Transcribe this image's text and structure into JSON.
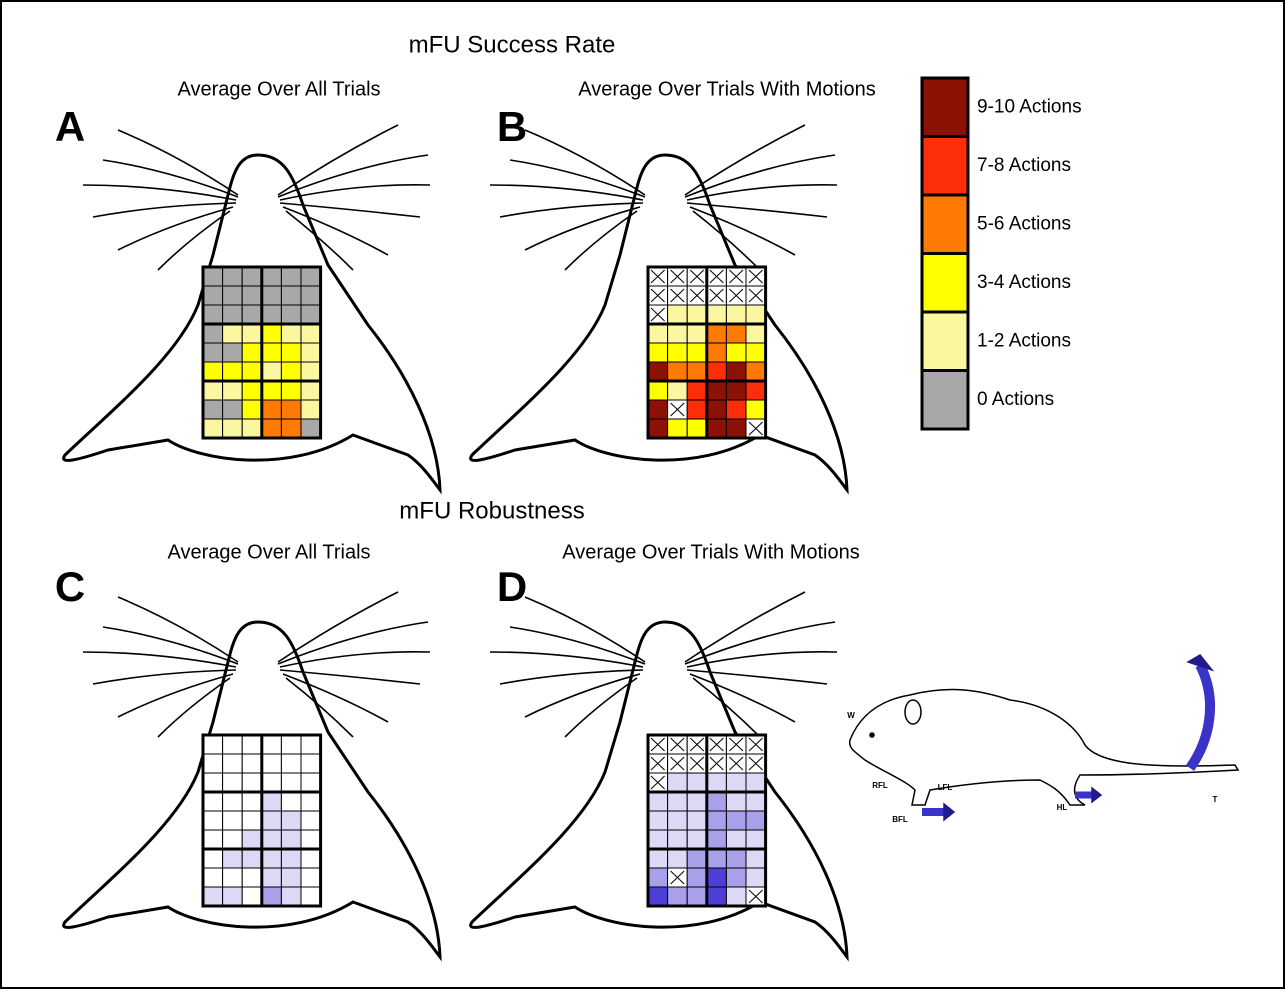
{
  "title_top": "mFU Success Rate",
  "title_bottom": "mFU Robustness",
  "panels": [
    {
      "letter": "A",
      "subtitle": "Average Over All Trials",
      "scale": "success",
      "cells": [
        [
          0,
          0,
          0,
          0,
          0,
          0
        ],
        [
          0,
          0,
          0,
          0,
          0,
          0
        ],
        [
          0,
          0,
          0,
          0,
          0,
          0
        ],
        [
          0,
          1,
          1,
          2,
          1,
          1
        ],
        [
          0,
          0,
          2,
          2,
          2,
          1
        ],
        [
          2,
          2,
          2,
          1,
          2,
          1
        ],
        [
          1,
          1,
          2,
          2,
          2,
          1
        ],
        [
          0,
          0,
          2,
          3,
          3,
          1
        ],
        [
          1,
          1,
          1,
          3,
          3,
          0
        ]
      ]
    },
    {
      "letter": "B",
      "subtitle": "Average Over Trials With Motions",
      "scale": "success",
      "cells": [
        [
          null,
          null,
          null,
          null,
          null,
          null
        ],
        [
          null,
          null,
          null,
          null,
          null,
          null
        ],
        [
          null,
          1,
          1,
          1,
          1,
          1
        ],
        [
          1,
          1,
          1,
          3,
          3,
          1
        ],
        [
          2,
          2,
          2,
          3,
          2,
          2
        ],
        [
          5,
          3,
          3,
          4,
          5,
          3
        ],
        [
          2,
          1,
          4,
          5,
          5,
          4
        ],
        [
          5,
          null,
          4,
          5,
          4,
          2
        ],
        [
          5,
          2,
          2,
          5,
          5,
          null
        ]
      ]
    },
    {
      "letter": "C",
      "subtitle": "Average Over All Trials",
      "scale": "robustness",
      "cells": [
        [
          0,
          0,
          0,
          0,
          0,
          0
        ],
        [
          0,
          0,
          0,
          0,
          0,
          0
        ],
        [
          0,
          0,
          0,
          0,
          0,
          0
        ],
        [
          0,
          0,
          0,
          1,
          0,
          0
        ],
        [
          0,
          0,
          0,
          1,
          1,
          0
        ],
        [
          0,
          0,
          1,
          1,
          1,
          0
        ],
        [
          0,
          1,
          1,
          1,
          1,
          0
        ],
        [
          0,
          0,
          0,
          1,
          1,
          0
        ],
        [
          1,
          1,
          0,
          2,
          1,
          0
        ]
      ]
    },
    {
      "letter": "D",
      "subtitle": "Average Over Trials With Motions",
      "scale": "robustness",
      "cells": [
        [
          null,
          null,
          null,
          null,
          null,
          null
        ],
        [
          null,
          null,
          null,
          null,
          null,
          null
        ],
        [
          null,
          1,
          1,
          1,
          1,
          1
        ],
        [
          1,
          1,
          1,
          2,
          1,
          1
        ],
        [
          1,
          1,
          1,
          2,
          2,
          2
        ],
        [
          1,
          1,
          1,
          2,
          1,
          1
        ],
        [
          1,
          1,
          2,
          2,
          2,
          1
        ],
        [
          2,
          null,
          2,
          3,
          2,
          1
        ],
        [
          3,
          2,
          2,
          3,
          1,
          null
        ]
      ]
    }
  ],
  "legend": [
    {
      "label": "9-10 Actions",
      "color": "#8b1205"
    },
    {
      "label": "7-8 Actions",
      "color": "#ff2e0a"
    },
    {
      "label": "5-6 Actions",
      "color": "#ff7a05"
    },
    {
      "label": "3-4 Actions",
      "color": "#ffff00"
    },
    {
      "label": "1-2 Actions",
      "color": "#fbf7a0"
    },
    {
      "label": "0 Actions",
      "color": "#a8a8a8"
    }
  ],
  "robustness_colors": [
    "#ffffff",
    "#dcd8f6",
    "#a9a0ea",
    "#4d3fd6"
  ],
  "rat_labels": [
    "W",
    "RFL",
    "LFL",
    "BFL",
    "HL",
    "T"
  ]
}
